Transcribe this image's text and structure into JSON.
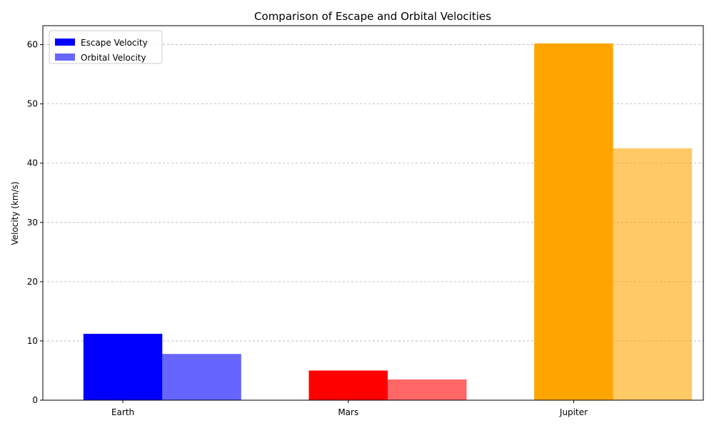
{
  "chart_data": {
    "type": "bar",
    "title": "Comparison of Escape and Orbital Velocities",
    "xlabel": "",
    "ylabel": "Velocity (km/s)",
    "categories": [
      "Earth",
      "Mars",
      "Jupiter"
    ],
    "series": [
      {
        "name": "Escape Velocity",
        "values": [
          11.2,
          5.0,
          60.2
        ],
        "colors": [
          "#0000ff",
          "#ff0000",
          "#ffa500"
        ],
        "opacity": 1.0
      },
      {
        "name": "Orbital Velocity",
        "values": [
          7.8,
          3.5,
          42.5
        ],
        "colors": [
          "#0000ff",
          "#ff0000",
          "#ffa500"
        ],
        "opacity": 0.6
      }
    ],
    "ylim": [
      0,
      63.2
    ],
    "yticks": [
      0,
      10,
      20,
      30,
      40,
      50,
      60
    ],
    "grid": "y-dashed",
    "legend_position": "top-left"
  }
}
